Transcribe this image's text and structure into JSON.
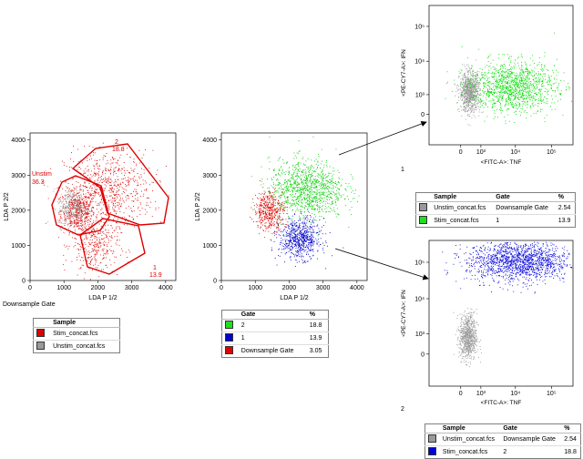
{
  "chart_data": [
    {
      "type": "scatter",
      "xlabel": "LDA P 1/2",
      "ylabel": "LDA P 2/2",
      "xticks": [
        "0",
        "1000",
        "2000",
        "3000",
        "4000"
      ],
      "yticks": [
        "0",
        "1000",
        "2000",
        "3000",
        "4000"
      ],
      "xlim": [
        0,
        4300
      ],
      "ylim": [
        0,
        4200
      ],
      "series": [
        {
          "name": "Stim_concat.fcs",
          "color": "#e00000",
          "clusters": [
            {
              "cx": 1400,
              "cy": 2000,
              "sx": 250,
              "sy": 300,
              "n": 500
            },
            {
              "cx": 2300,
              "cy": 2600,
              "sx": 650,
              "sy": 550,
              "n": 700
            },
            {
              "cx": 1900,
              "cy": 1000,
              "sx": 350,
              "sy": 450,
              "n": 350
            }
          ]
        },
        {
          "name": "Unstim_concat.fcs",
          "color": "#999999",
          "clusters": [
            {
              "cx": 1250,
              "cy": 2100,
              "sx": 220,
              "sy": 280,
              "n": 300
            }
          ]
        }
      ],
      "gates": [
        {
          "name": "Unstim",
          "label": "Unstim",
          "value": "36.3"
        },
        {
          "name": "2",
          "label": "2",
          "value": "18.8"
        },
        {
          "name": "1",
          "label": "1",
          "value": "13.9"
        }
      ],
      "caption": "Downsample Gate",
      "legend": {
        "header": "Sample",
        "rows": [
          {
            "label": "Stim_concat.fcs",
            "color": "#e00000"
          },
          {
            "label": "Unstim_concat.fcs",
            "color": "#999999"
          }
        ]
      }
    },
    {
      "type": "scatter",
      "xlabel": "LDA P 1/2",
      "ylabel": "LDA P 2/2",
      "xticks": [
        "0",
        "1000",
        "2000",
        "3000",
        "4000"
      ],
      "yticks": [
        "0",
        "1000",
        "2000",
        "3000",
        "4000"
      ],
      "xlim": [
        0,
        4300
      ],
      "ylim": [
        0,
        4200
      ],
      "series": [
        {
          "name": "2",
          "color": "#00cc00",
          "clusters": [
            {
              "cx": 2500,
              "cy": 2600,
              "sx": 550,
              "sy": 420,
              "n": 1100
            }
          ]
        },
        {
          "name": "1",
          "color": "#0000cc",
          "clusters": [
            {
              "cx": 2300,
              "cy": 1200,
              "sx": 300,
              "sy": 280,
              "n": 700
            }
          ]
        },
        {
          "name": "Downsample Gate",
          "color": "#e00000",
          "clusters": [
            {
              "cx": 1400,
              "cy": 2000,
              "sx": 220,
              "sy": 280,
              "n": 450
            }
          ]
        }
      ],
      "legend": {
        "header": "Gate",
        "value_header": "%",
        "rows": [
          {
            "label": "2",
            "color": "#22dd22",
            "value": "18.8"
          },
          {
            "label": "1",
            "color": "#0000cc",
            "value": "13.9"
          },
          {
            "label": "Downsample Gate",
            "color": "#e00000",
            "value": "3.05"
          }
        ]
      }
    },
    {
      "type": "scatter",
      "xlabel": "<FITC-A>: TNF",
      "ylabel": "<PE-CY7-A>: IFN",
      "xticks": [
        "0",
        "10³",
        "10⁴",
        "10⁵"
      ],
      "yticks": [
        "0",
        "10³",
        "10⁴",
        "10⁵"
      ],
      "axis_scale": "biexponential",
      "series": [
        {
          "name": "Unstim_concat.fcs",
          "color": "#999999",
          "clusters": [
            {
              "fx": 0.28,
              "fy": 0.38,
              "sx": 0.035,
              "sy": 0.07,
              "n": 900
            }
          ]
        },
        {
          "name": "Stim_concat.fcs",
          "color": "#00dd00",
          "clusters": [
            {
              "fx": 0.58,
              "fy": 0.42,
              "sx": 0.15,
              "sy": 0.09,
              "n": 1300
            }
          ]
        }
      ],
      "caption": "1",
      "legend": {
        "header": "Sample",
        "gate_header": "Gate",
        "value_header": "%",
        "rows": [
          {
            "label": "Unstim_concat.fcs",
            "color": "#999999",
            "gate": "Downsample Gate",
            "value": "2.54"
          },
          {
            "label": "Stim_concat.fcs",
            "color": "#22dd22",
            "gate": "1",
            "value": "13.9"
          }
        ]
      }
    },
    {
      "type": "scatter",
      "xlabel": "<FITC-A>: TNF",
      "ylabel": "<PE-CY7-A>: IFN",
      "xticks": [
        "0",
        "10³",
        "10⁴",
        "10⁵"
      ],
      "yticks": [
        "0",
        "10³",
        "10⁴",
        "10⁵"
      ],
      "axis_scale": "biexponential",
      "series": [
        {
          "name": "Unstim_concat.fcs",
          "color": "#999999",
          "clusters": [
            {
              "fx": 0.27,
              "fy": 0.34,
              "sx": 0.03,
              "sy": 0.08,
              "n": 800
            }
          ]
        },
        {
          "name": "Stim_concat.fcs",
          "color": "#0000dd",
          "clusters": [
            {
              "fx": 0.62,
              "fy": 0.86,
              "sx": 0.18,
              "sy": 0.07,
              "n": 1600
            }
          ]
        }
      ],
      "caption": "2",
      "legend": {
        "header": "Sample",
        "gate_header": "Gate",
        "value_header": "%",
        "rows": [
          {
            "label": "Unstim_concat.fcs",
            "color": "#999999",
            "gate": "Downsample Gate",
            "value": "2.54"
          },
          {
            "label": "Stim_concat.fcs",
            "color": "#0000dd",
            "gate": "2",
            "value": "18.8"
          }
        ]
      }
    }
  ]
}
